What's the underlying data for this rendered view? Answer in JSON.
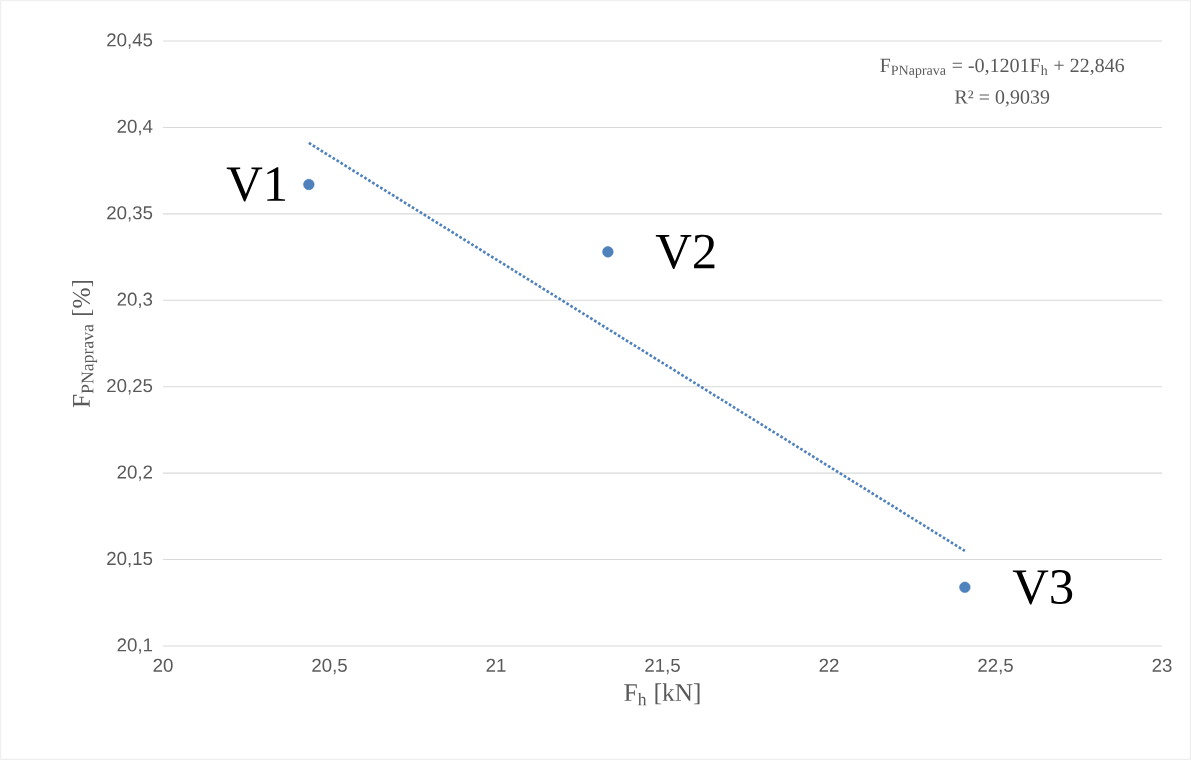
{
  "chart_data": {
    "type": "scatter",
    "xlabel": "F$_{h}$  [kN]",
    "ylabel": "F$_{PNaprava}$ [%]",
    "xlim": [
      20,
      23
    ],
    "ylim": [
      20.1,
      20.45
    ],
    "xticks": [
      20,
      {
        "value": 20.5,
        "label": "20,5"
      },
      21,
      {
        "value": 21.5,
        "label": "21,5"
      },
      22,
      {
        "value": 22.5,
        "label": "22,5"
      },
      23
    ],
    "yticks": [
      {
        "value": 20.1,
        "label": "20,1"
      },
      {
        "value": 20.15,
        "label": "20,15"
      },
      {
        "value": 20.2,
        "label": "20,2"
      },
      {
        "value": 20.25,
        "label": "20,25"
      },
      {
        "value": 20.3,
        "label": "20,3"
      },
      {
        "value": 20.35,
        "label": "20,35"
      },
      {
        "value": 20.4,
        "label": "20,4"
      },
      {
        "value": 20.45,
        "label": "20,45"
      }
    ],
    "grid": "y",
    "series": [
      {
        "marker": "circle",
        "color": "#4f81bd",
        "x": [
          20.438,
          21.336,
          22.408
        ],
        "values": [
          20.367,
          20.328,
          20.134
        ]
      },
      {
        "type": "line",
        "color": "#4f81bd",
        "line_style": "dotted",
        "marker": "none",
        "x": [
          20.438,
          22.408
        ],
        "values": [
          20.391,
          20.155
        ]
      }
    ],
    "annotations": [
      "F$_{PNaprava}$ = -0,1201F$_{h}$ + 22,846",
      "R² = 0,9039",
      {
        "text": "V1",
        "x": 20.438,
        "y": 20.367
      },
      {
        "text": "V2",
        "x": 21.336,
        "y": 20.328
      },
      {
        "text": "V3",
        "x": 22.408,
        "y": 20.134
      }
    ]
  }
}
